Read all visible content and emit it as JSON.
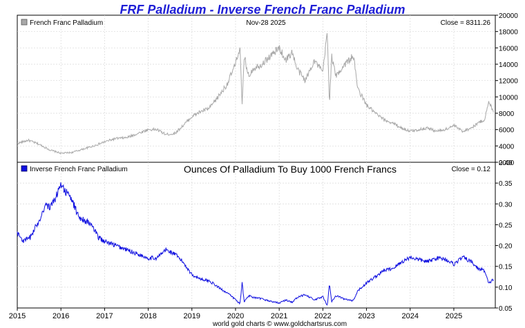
{
  "title": "FRF Palladium - Inverse French Franc Palladium",
  "footer": "world gold charts © www.goldchartsrus.com",
  "colors": {
    "title": "#1f1fd6",
    "top_series": "#a8a8a8",
    "bottom_series": "#1010e0",
    "grid": "#d8d8d8",
    "frame": "#000000"
  },
  "chart_data": [
    {
      "type": "line",
      "legend": "French Franc Palladium",
      "header_center": "Nov-28  2025",
      "close_label": "Close = 8311.26",
      "ylim": [
        2000,
        20000
      ],
      "yticks": [
        2000,
        4000,
        6000,
        8000,
        10000,
        12000,
        14000,
        16000,
        18000,
        20000
      ],
      "grid": true,
      "series": [
        {
          "x": [
            2015.0,
            2015.25,
            2015.5,
            2015.75,
            2016.0,
            2016.25,
            2016.5,
            2016.75,
            2017.0,
            2017.25,
            2017.5,
            2017.75,
            2018.0,
            2018.2,
            2018.4,
            2018.6,
            2018.8,
            2019.0,
            2019.2,
            2019.4,
            2019.6,
            2019.8,
            2020.0,
            2020.1,
            2020.15,
            2020.2,
            2020.3,
            2020.4,
            2020.6,
            2020.8,
            2021.0,
            2021.15,
            2021.3,
            2021.4,
            2021.6,
            2021.8,
            2022.0,
            2022.1,
            2022.15,
            2022.2,
            2022.3,
            2022.5,
            2022.7,
            2022.8,
            2023.0,
            2023.2,
            2023.4,
            2023.6,
            2023.8,
            2024.0,
            2024.2,
            2024.4,
            2024.6,
            2024.8,
            2025.0,
            2025.2,
            2025.4,
            2025.55,
            2025.7,
            2025.8,
            2025.91
          ],
          "values": [
            4300,
            4700,
            4200,
            3500,
            3100,
            3200,
            3600,
            4000,
            4500,
            4900,
            5000,
            5500,
            6000,
            6000,
            5400,
            5500,
            6500,
            7600,
            8200,
            8600,
            10000,
            11500,
            14000,
            16200,
            8900,
            15000,
            12500,
            13500,
            14000,
            15000,
            16000,
            14500,
            15500,
            13500,
            12000,
            14500,
            13000,
            18000,
            9200,
            15000,
            12500,
            14000,
            15000,
            11000,
            9000,
            8000,
            7200,
            6800,
            6200,
            5800,
            6000,
            6200,
            5800,
            6000,
            6500,
            5800,
            6200,
            6800,
            7200,
            9300,
            8311
          ]
        }
      ]
    },
    {
      "type": "line",
      "legend": "Inverse French Franc Palladium",
      "title": "Ounces Of Palladium To Buy 1000 French Francs",
      "close_label": "Close = 0.12",
      "ylim": [
        0.05,
        0.4
      ],
      "yticks": [
        0.05,
        0.1,
        0.15,
        0.2,
        0.25,
        0.3,
        0.35,
        0.4
      ],
      "grid": true,
      "series": [
        {
          "x": [
            2015.0,
            2015.15,
            2015.3,
            2015.5,
            2015.65,
            2015.75,
            2015.9,
            2016.0,
            2016.1,
            2016.25,
            2016.4,
            2016.55,
            2016.7,
            2016.85,
            2017.0,
            2017.25,
            2017.5,
            2017.75,
            2018.0,
            2018.2,
            2018.4,
            2018.6,
            2018.8,
            2019.0,
            2019.2,
            2019.4,
            2019.6,
            2019.8,
            2020.0,
            2020.1,
            2020.15,
            2020.2,
            2020.3,
            2020.4,
            2020.6,
            2020.8,
            2021.0,
            2021.15,
            2021.3,
            2021.4,
            2021.6,
            2021.8,
            2022.0,
            2022.1,
            2022.15,
            2022.2,
            2022.3,
            2022.5,
            2022.7,
            2022.8,
            2023.0,
            2023.2,
            2023.4,
            2023.6,
            2023.8,
            2024.0,
            2024.2,
            2024.4,
            2024.6,
            2024.8,
            2025.0,
            2025.2,
            2025.4,
            2025.55,
            2025.7,
            2025.8,
            2025.91
          ],
          "values": [
            0.23,
            0.21,
            0.22,
            0.26,
            0.3,
            0.29,
            0.32,
            0.35,
            0.33,
            0.31,
            0.27,
            0.26,
            0.25,
            0.22,
            0.21,
            0.2,
            0.19,
            0.18,
            0.17,
            0.17,
            0.19,
            0.18,
            0.16,
            0.13,
            0.12,
            0.115,
            0.1,
            0.087,
            0.07,
            0.06,
            0.11,
            0.065,
            0.08,
            0.075,
            0.072,
            0.066,
            0.062,
            0.069,
            0.064,
            0.074,
            0.083,
            0.069,
            0.077,
            0.055,
            0.108,
            0.065,
            0.08,
            0.071,
            0.067,
            0.091,
            0.11,
            0.125,
            0.14,
            0.145,
            0.16,
            0.172,
            0.166,
            0.161,
            0.17,
            0.168,
            0.155,
            0.172,
            0.161,
            0.145,
            0.14,
            0.108,
            0.12
          ]
        }
      ]
    }
  ],
  "x_axis": {
    "xlim": [
      2015.0,
      2025.95
    ],
    "ticks": [
      2015,
      2016,
      2017,
      2018,
      2019,
      2020,
      2021,
      2022,
      2023,
      2024,
      2025
    ],
    "tick_labels": [
      "2015",
      "2016",
      "2017",
      "2018",
      "2019",
      "2020",
      "2021",
      "2022",
      "2023",
      "2024",
      "2025"
    ]
  }
}
